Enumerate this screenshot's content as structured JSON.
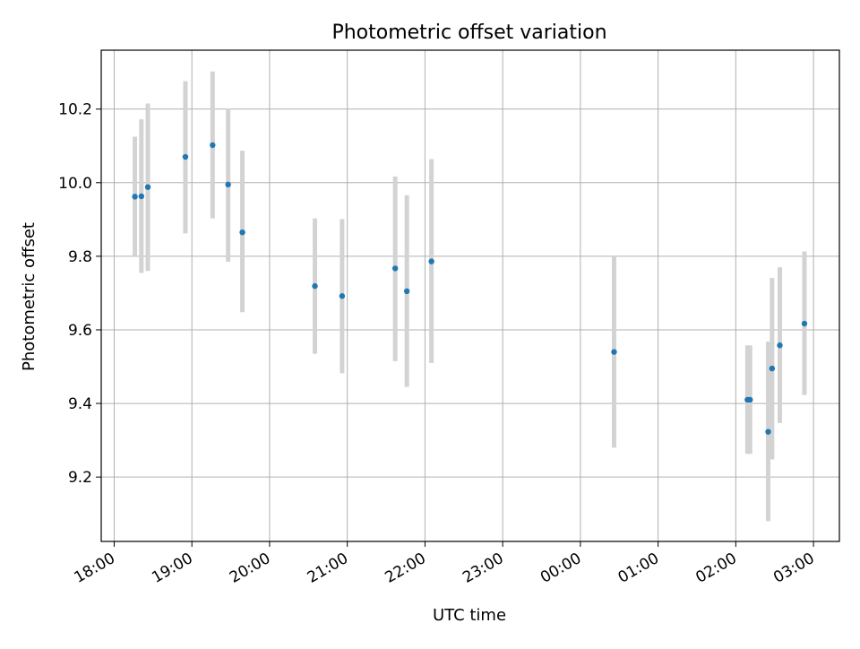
{
  "chart_data": {
    "type": "scatter",
    "title": "Photometric offset variation",
    "xlabel": "UTC time",
    "ylabel": "Photometric offset",
    "x_ticks": [
      "18:00",
      "19:00",
      "20:00",
      "21:00",
      "22:00",
      "23:00",
      "00:00",
      "01:00",
      "02:00",
      "03:00"
    ],
    "y_ticks": [
      "9.2",
      "9.4",
      "9.6",
      "9.8",
      "10.0",
      "10.2"
    ],
    "ylim": [
      9.025,
      10.36
    ],
    "xlim": [
      "17:50",
      "03:20"
    ],
    "grid": true,
    "point_color": "#1f77b4",
    "errorbar_color": "#d3d3d3",
    "points": [
      {
        "time": "18:16",
        "y": 9.962,
        "lo": 9.8,
        "hi": 10.125
      },
      {
        "time": "18:21",
        "y": 9.963,
        "lo": 9.755,
        "hi": 10.172
      },
      {
        "time": "18:26",
        "y": 9.988,
        "lo": 9.76,
        "hi": 10.215
      },
      {
        "time": "18:55",
        "y": 10.07,
        "lo": 9.862,
        "hi": 10.276
      },
      {
        "time": "19:16",
        "y": 10.102,
        "lo": 9.903,
        "hi": 10.302
      },
      {
        "time": "19:28",
        "y": 9.995,
        "lo": 9.785,
        "hi": 10.202
      },
      {
        "time": "19:39",
        "y": 9.865,
        "lo": 9.648,
        "hi": 10.087
      },
      {
        "time": "20:35",
        "y": 9.719,
        "lo": 9.535,
        "hi": 9.903
      },
      {
        "time": "20:56",
        "y": 9.692,
        "lo": 9.482,
        "hi": 9.901
      },
      {
        "time": "21:37",
        "y": 9.767,
        "lo": 9.515,
        "hi": 10.017
      },
      {
        "time": "21:46",
        "y": 9.705,
        "lo": 9.445,
        "hi": 9.966
      },
      {
        "time": "22:05",
        "y": 9.786,
        "lo": 9.51,
        "hi": 10.064
      },
      {
        "time": "00:26",
        "y": 9.54,
        "lo": 9.28,
        "hi": 9.8
      },
      {
        "time": "02:09",
        "y": 9.41,
        "lo": 9.263,
        "hi": 9.558
      },
      {
        "time": "02:11",
        "y": 9.41,
        "lo": 9.263,
        "hi": 9.558
      },
      {
        "time": "02:25",
        "y": 9.323,
        "lo": 9.08,
        "hi": 9.568
      },
      {
        "time": "02:28",
        "y": 9.495,
        "lo": 9.248,
        "hi": 9.741
      },
      {
        "time": "02:34",
        "y": 9.558,
        "lo": 9.347,
        "hi": 9.77
      },
      {
        "time": "02:53",
        "y": 9.617,
        "lo": 9.423,
        "hi": 9.813
      }
    ]
  }
}
